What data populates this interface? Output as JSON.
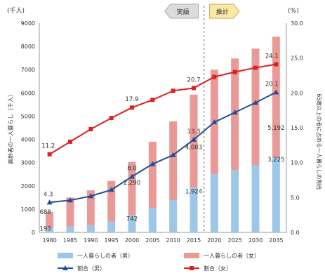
{
  "chart_data": {
    "type": "bar+line",
    "categories": [
      "1980",
      "1985",
      "1990",
      "1995",
      "2000",
      "2005",
      "2010",
      "2015",
      "2020",
      "2025",
      "2030",
      "2035"
    ],
    "y_left": {
      "unit_label": "(千人)",
      "ylim": [
        0,
        9000
      ],
      "ticks": [
        0,
        1000,
        2000,
        3000,
        4000,
        5000,
        6000,
        7000,
        8000,
        9000
      ],
      "axis_title": "高齢者の一人暮らし（千人）"
    },
    "y_right": {
      "unit_label": "(%)",
      "ylim": [
        0,
        30
      ],
      "ticks": [
        "0.0",
        "5.0",
        "10.0",
        "15.0",
        "20.0",
        "25.0",
        "30.0"
      ],
      "axis_title": "65歳以上の者に占める一人暮らしの割合"
    },
    "phase_labels": {
      "actual": "実績",
      "projected": "推計"
    },
    "series": [
      {
        "name": "一人暮らしの者（男）",
        "kind": "bar",
        "color": "#9cc7e6",
        "values": [
          193,
          250,
          310,
          460,
          742,
          1050,
          1380,
          1924,
          2500,
          2680,
          2900,
          3225
        ]
      },
      {
        "name": "一人暮らしの者（女）",
        "kind": "bar",
        "color": "#e99a97",
        "values": [
          688,
          1250,
          1500,
          1750,
          2290,
          2850,
          3400,
          4003,
          4500,
          4800,
          5000,
          5192
        ]
      },
      {
        "name": "割合（男）",
        "kind": "line",
        "color": "#1f4e96",
        "values": [
          4.3,
          4.6,
          5.2,
          6.1,
          8.0,
          9.8,
          11.1,
          13.3,
          15.8,
          17.2,
          18.6,
          20.1
        ]
      },
      {
        "name": "割合（女）",
        "kind": "line",
        "color": "#e02020",
        "values": [
          11.2,
          13.0,
          14.8,
          16.4,
          17.9,
          19.0,
          20.3,
          20.7,
          22.3,
          23.0,
          23.6,
          24.1
        ]
      }
    ],
    "data_labels": [
      {
        "text": "688",
        "i": 0,
        "axis": "left",
        "v": 688
      },
      {
        "text": "193",
        "i": 0,
        "axis": "left",
        "v": 193
      },
      {
        "text": "742",
        "i": 4,
        "axis": "left",
        "v": 742
      },
      {
        "text": "2,290",
        "i": 4,
        "axis": "left",
        "v": 2290
      },
      {
        "text": "1,924",
        "i": 7,
        "axis": "left",
        "v": 1924
      },
      {
        "text": "4,003",
        "i": 7,
        "axis": "left",
        "v": 4003
      },
      {
        "text": "3,225",
        "i": 11,
        "axis": "left",
        "v": 3225
      },
      {
        "text": "5,192",
        "i": 11,
        "axis": "left",
        "v": 5192
      },
      {
        "text": "4.3",
        "i": 0,
        "axis": "right",
        "v": 4.3
      },
      {
        "text": "11.2",
        "i": 0,
        "axis": "right",
        "v": 11.2
      },
      {
        "text": "8.0",
        "i": 4,
        "axis": "right",
        "v": 8.0
      },
      {
        "text": "17.9",
        "i": 4,
        "axis": "right",
        "v": 17.9
      },
      {
        "text": "13.3",
        "i": 7,
        "axis": "right",
        "v": 13.3
      },
      {
        "text": "20.7",
        "i": 7,
        "axis": "right",
        "v": 20.7
      },
      {
        "text": "20.1",
        "i": 11,
        "axis": "right",
        "v": 20.1
      },
      {
        "text": "24.1",
        "i": 11,
        "axis": "right",
        "v": 24.1
      }
    ],
    "grid": false,
    "legend_position": "bottom"
  }
}
